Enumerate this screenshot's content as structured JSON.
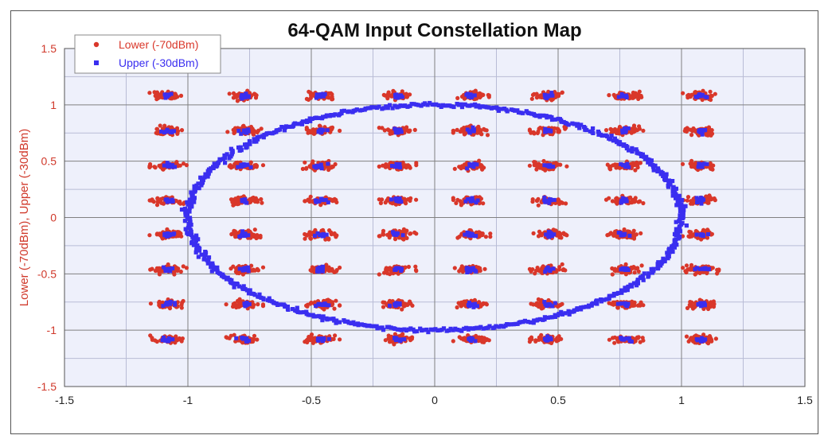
{
  "chart_data": {
    "type": "scatter",
    "title": "64-QAM Input Constellation Map",
    "xlabel": "",
    "ylabel": "Lower (-70dBm), Upper (-30dBm)",
    "xlim": [
      -1.5,
      1.5
    ],
    "ylim": [
      -1.5,
      1.5
    ],
    "x_ticks": [
      -1.5,
      -1,
      -0.5,
      0,
      0.5,
      1,
      1.5
    ],
    "y_ticks": [
      -1.5,
      -1,
      -0.5,
      0,
      0.5,
      1,
      1.5
    ],
    "x_tick_labels": [
      "-1.5",
      "-1",
      "-0.5",
      "0",
      "0.5",
      "1",
      "1.5"
    ],
    "y_tick_labels": [
      "-1.5",
      "-1",
      "-0.5",
      "0",
      "0.5",
      "1",
      "1.5"
    ],
    "grid": true,
    "legend_position": "top-left",
    "constellation_levels_x": [
      -1.08,
      -0.77,
      -0.46,
      -0.15,
      0.15,
      0.46,
      0.77,
      1.08
    ],
    "constellation_levels_y": [
      -1.08,
      -0.77,
      -0.46,
      -0.15,
      0.15,
      0.46,
      0.77,
      1.08
    ],
    "series": [
      {
        "name": "Lower (-70dBm)",
        "color": "#d9372a",
        "marker": "circle",
        "shape": "64 clusters at constellation grid points (spread ±0.07 x, ±0.04 y)"
      },
      {
        "name": "Upper (-30dBm)",
        "color": "#3a2ef0",
        "marker": "square",
        "shape": "ellipse centered at (0, 0) with x-radius 1.0 and y-radius 1.0, plus tight clusters at constellation grid points"
      }
    ],
    "colors": {
      "plot_background": "#eef0fb",
      "grid_major": "#808080",
      "grid_minor": "#b9bcd6",
      "lower": "#d9372a",
      "upper": "#3a2ef0",
      "y_axis_text": "#d0392b"
    }
  }
}
